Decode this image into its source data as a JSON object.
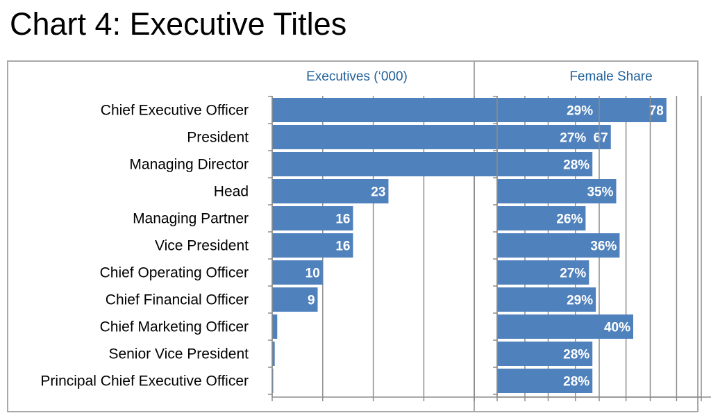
{
  "title": "Chart 4: Executive Titles",
  "colors": {
    "bar": "#4f81bd",
    "header_text": "#1f5f99",
    "grid": "#8c8c8c",
    "frame": "#a8a8a8"
  },
  "chart_data": [
    {
      "type": "bar",
      "orientation": "horizontal",
      "title": "Executives (‘000)",
      "xlim": [
        0,
        100
      ],
      "grid": true,
      "categories": [
        "Chief Executive Officer",
        "President",
        "Managing Director",
        "Head",
        "Managing Partner",
        "Vice President",
        "Chief Operating Officer",
        "Chief Financial Officer",
        "Chief Marketing Officer",
        "Senior Vice President",
        "Principal Chief Executive Officer"
      ],
      "values": [
        78,
        67,
        59,
        23,
        16,
        16,
        10,
        9,
        1,
        0.5,
        0.2
      ],
      "data_labels": [
        "78",
        "67",
        "59",
        "23",
        "16",
        "16",
        "10",
        "9",
        "",
        "",
        ""
      ]
    },
    {
      "type": "bar",
      "orientation": "horizontal",
      "title": "Female Share",
      "xlim": [
        0,
        60
      ],
      "grid": true,
      "categories": [
        "Chief Executive Officer",
        "President",
        "Managing Director",
        "Head",
        "Managing Partner",
        "Vice President",
        "Chief Operating Officer",
        "Chief Financial Officer",
        "Chief Marketing Officer",
        "Senior Vice President",
        "Principal Chief Executive Officer"
      ],
      "values": [
        29,
        27,
        28,
        35,
        26,
        36,
        27,
        29,
        40,
        28,
        28
      ],
      "data_labels": [
        "29%",
        "27%",
        "28%",
        "35%",
        "26%",
        "36%",
        "27%",
        "29%",
        "40%",
        "28%",
        "28%"
      ]
    }
  ]
}
